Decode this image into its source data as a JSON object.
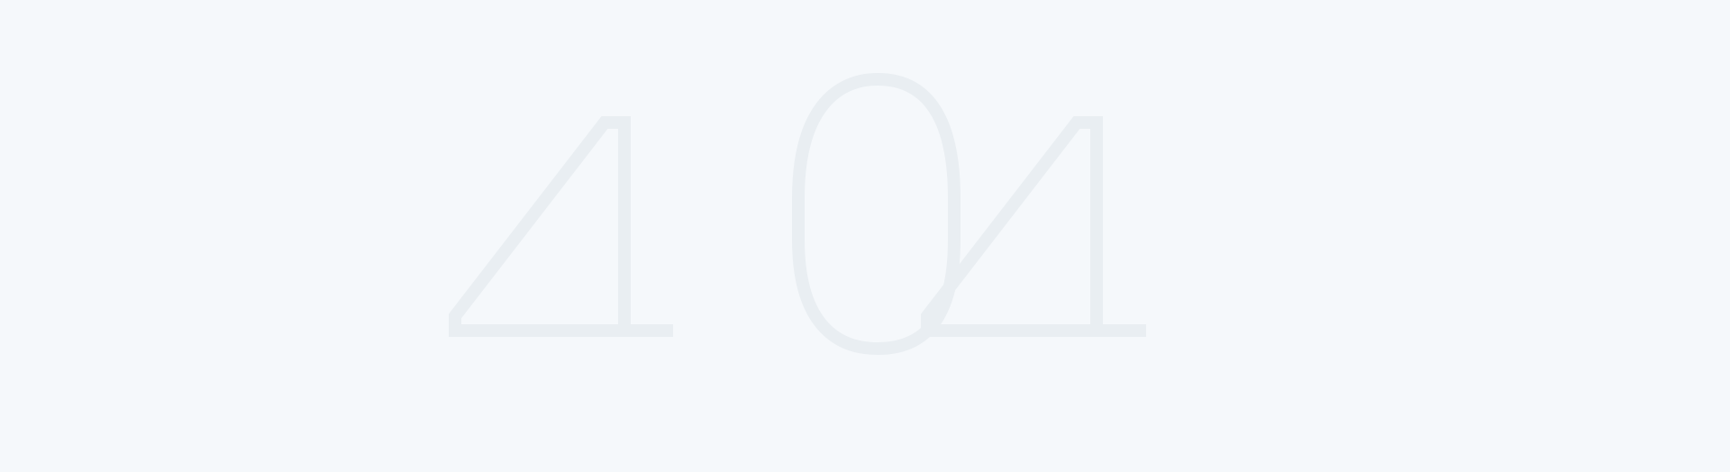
{
  "error": {
    "code": "404"
  },
  "colors": {
    "background": "#f5f8fb",
    "digits": "#e9eef2"
  }
}
